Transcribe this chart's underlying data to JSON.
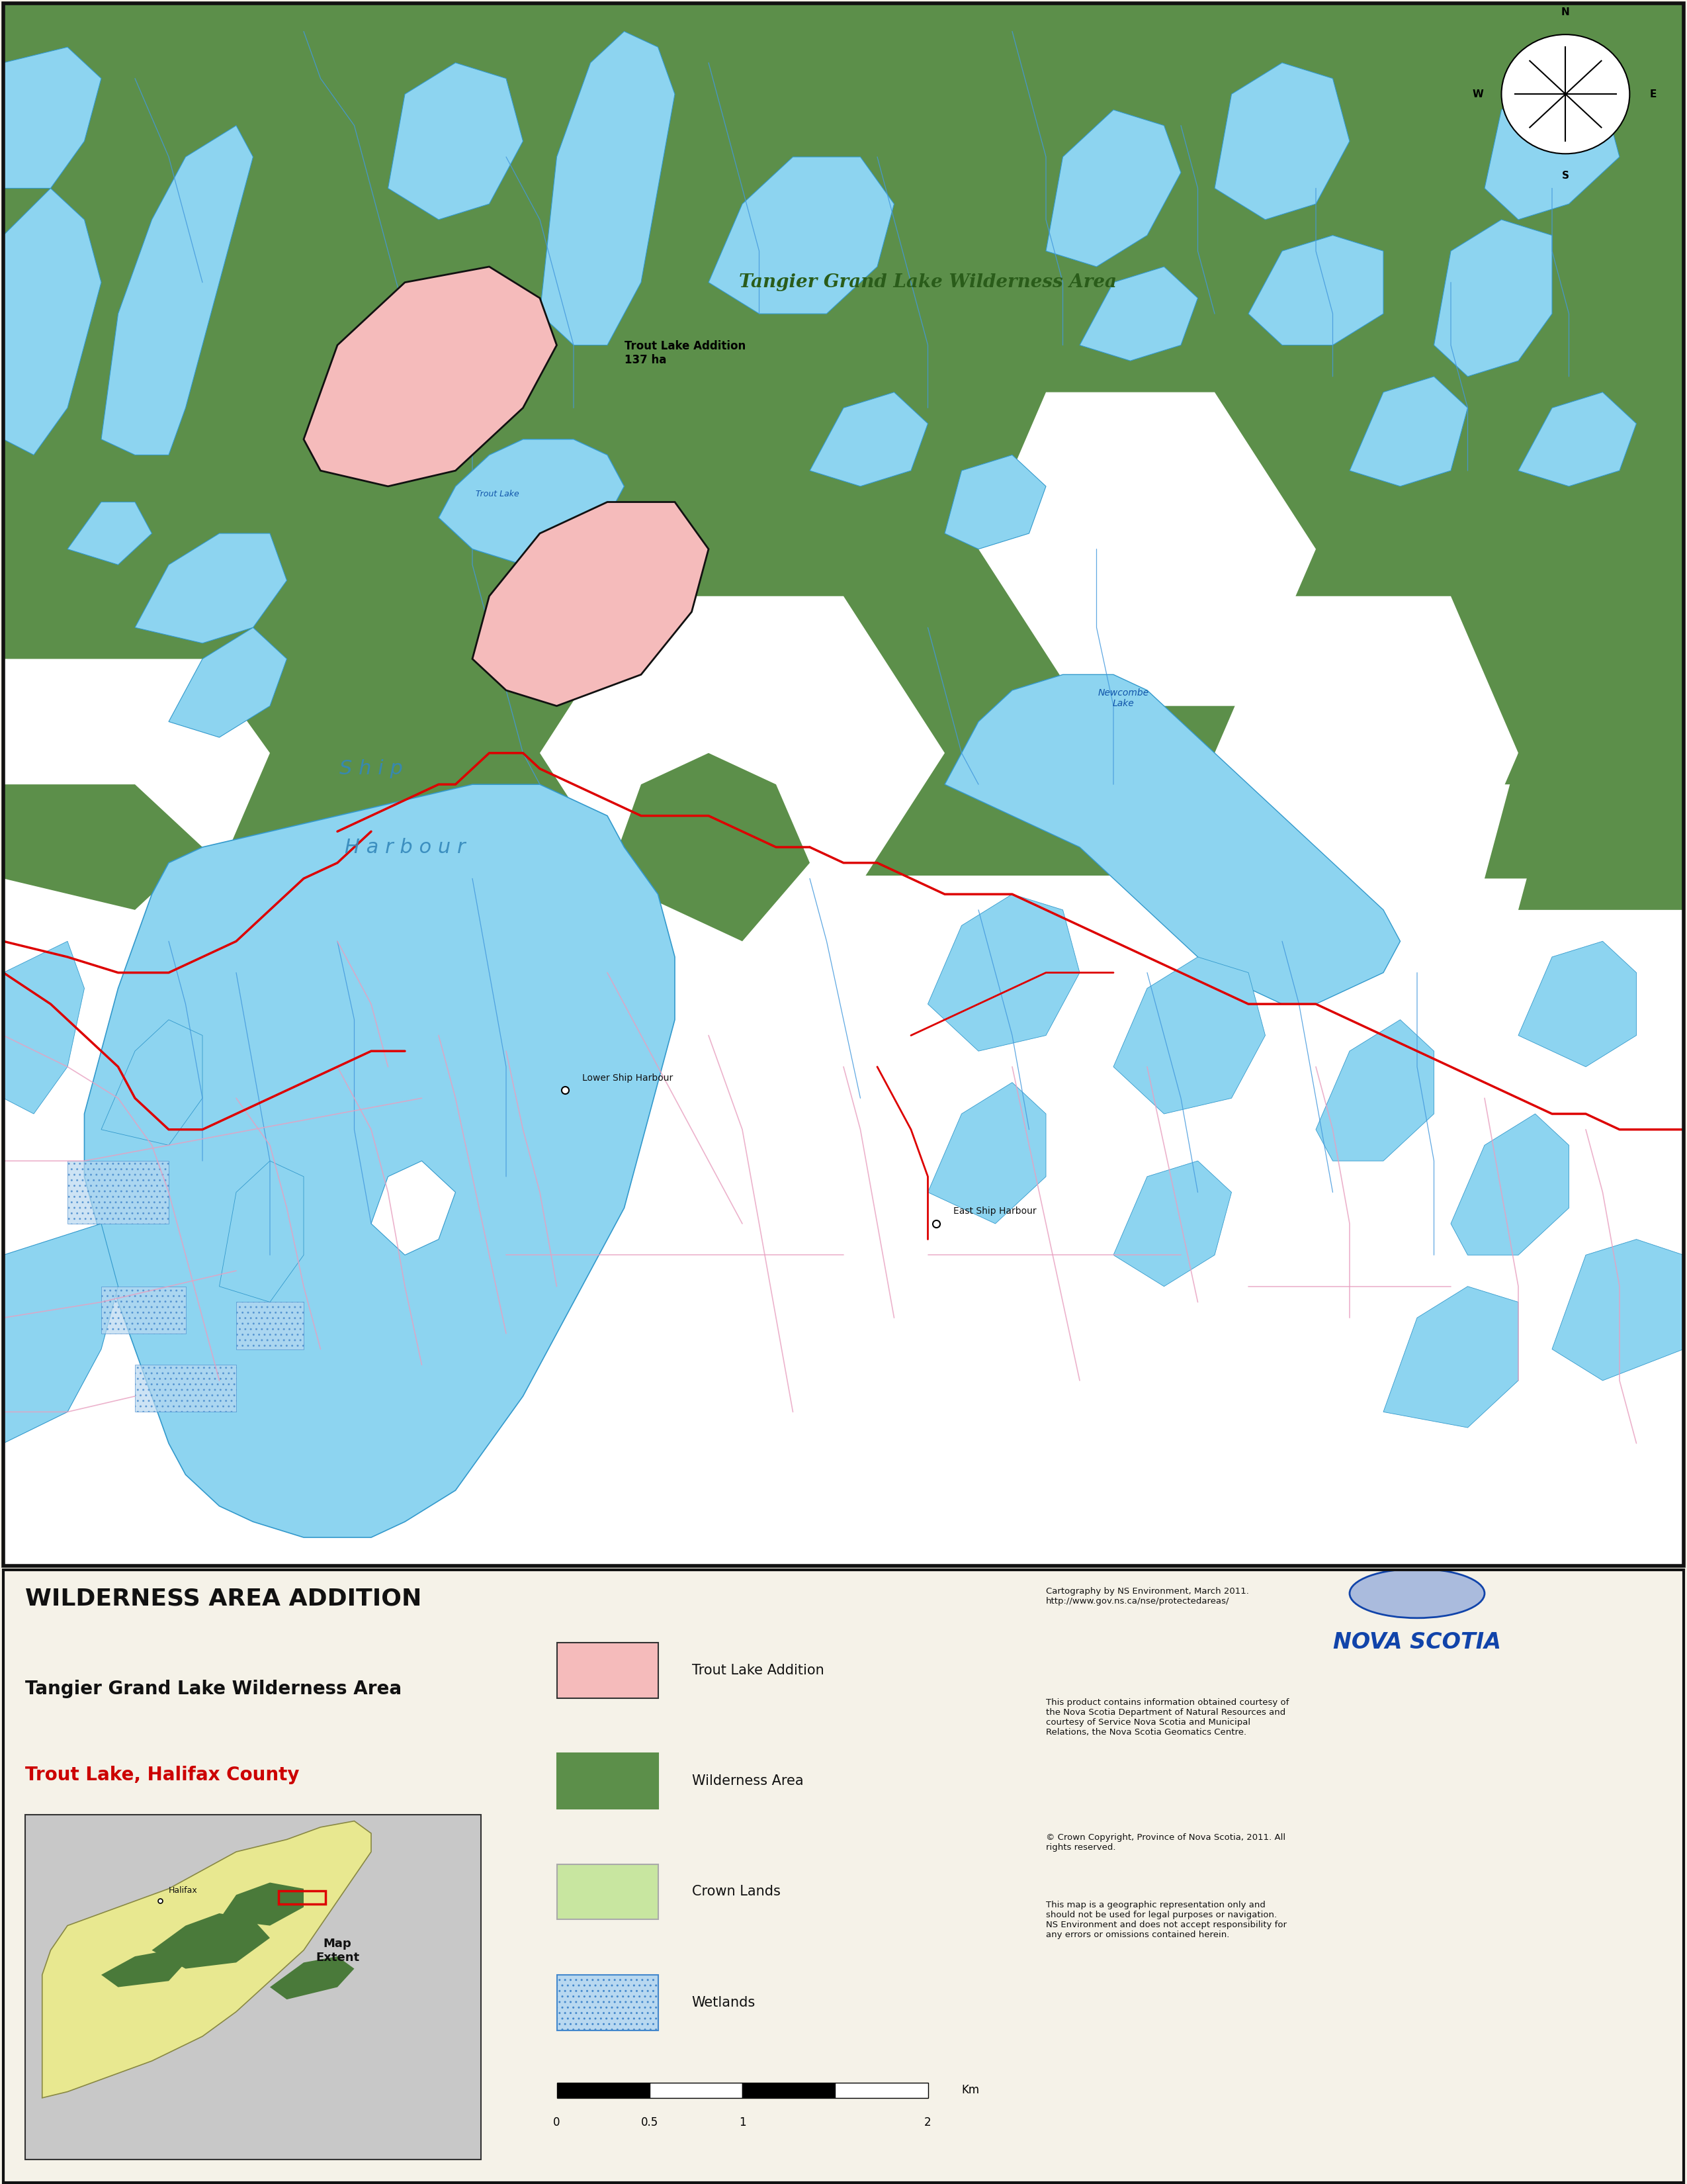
{
  "panel_header_line1": "WILDERNESS AREA ADDITION",
  "panel_header_line2": "Tangier Grand Lake Wilderness Area",
  "panel_header_line3": "Trout Lake, Halifax County",
  "wilderness_green": "#5c8f4a",
  "lake_blue": "#8dd4f0",
  "lake_edge": "#3399cc",
  "white_land": "#ffffff",
  "land_bg": "#ffffff",
  "road_red": "#dd0000",
  "road_pink": "#e8a0b0",
  "stream_blue": "#4499dd",
  "trout_add_fill": "#f5bbbb",
  "trout_add_edge": "#111111",
  "panel_bg": "#f5f2e8",
  "cartography_text": "Cartography by NS Environment, March 2011.\nhttp://www.gov.ns.ca/nse/protectedareas/",
  "product_text": "This product contains information obtained courtesy of\nthe Nova Scotia Department of Natural Resources and\ncourtesy of Service Nova Scotia and Municipal\nRelations, the Nova Scotia Geomatics Centre.",
  "copyright_text": "© Crown Copyright, Province of Nova Scotia, 2011. All\nrights reserved.",
  "disclaimer_text": "This map is a geographic representation only and\nshould not be used for legal purposes or navigation.\nNS Environment and does not accept responsibility for\nany errors or omissions contained herein."
}
